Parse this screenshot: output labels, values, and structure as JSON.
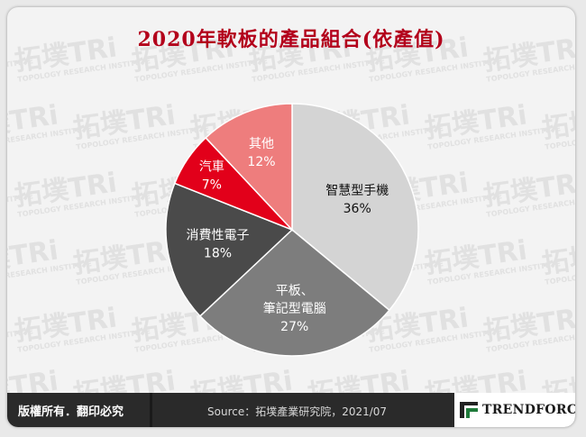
{
  "title": "2020年軟板的產品組合(依產值)",
  "watermark": {
    "mark": "拓墣TRi",
    "subtext": "TOPOLOGY RESEARCH INSTITUTE"
  },
  "chart_data": {
    "type": "pie",
    "title": "2020年軟板的產品組合(依產值)",
    "unit": "%",
    "slices": [
      {
        "label": "智慧型手機",
        "value": 36,
        "value_label": "36%",
        "color": "#d4d4d4",
        "text_color": "#111111"
      },
      {
        "label": "平板、\n筆記型電腦",
        "value": 27,
        "value_label": "27%",
        "color": "#7d7d7d",
        "text_color": "#ffffff"
      },
      {
        "label": "消費性電子",
        "value": 18,
        "value_label": "18%",
        "color": "#4a4a4a",
        "text_color": "#ffffff"
      },
      {
        "label": "汽車",
        "value": 7,
        "value_label": "7%",
        "color": "#e2001a",
        "text_color": "#ffffff"
      },
      {
        "label": "其他",
        "value": 12,
        "value_label": "12%",
        "color": "#ee7d7d",
        "text_color": "#ffffff"
      }
    ]
  },
  "footer": {
    "rights": "版權所有．翻印必究",
    "source": "Source：拓墣產業研究院，2021/07",
    "logo_text": "TRENDFORCE",
    "logo_icon": "trendforce-logo-icon",
    "logo_colors": [
      "#1f7a3a",
      "#222222"
    ]
  }
}
